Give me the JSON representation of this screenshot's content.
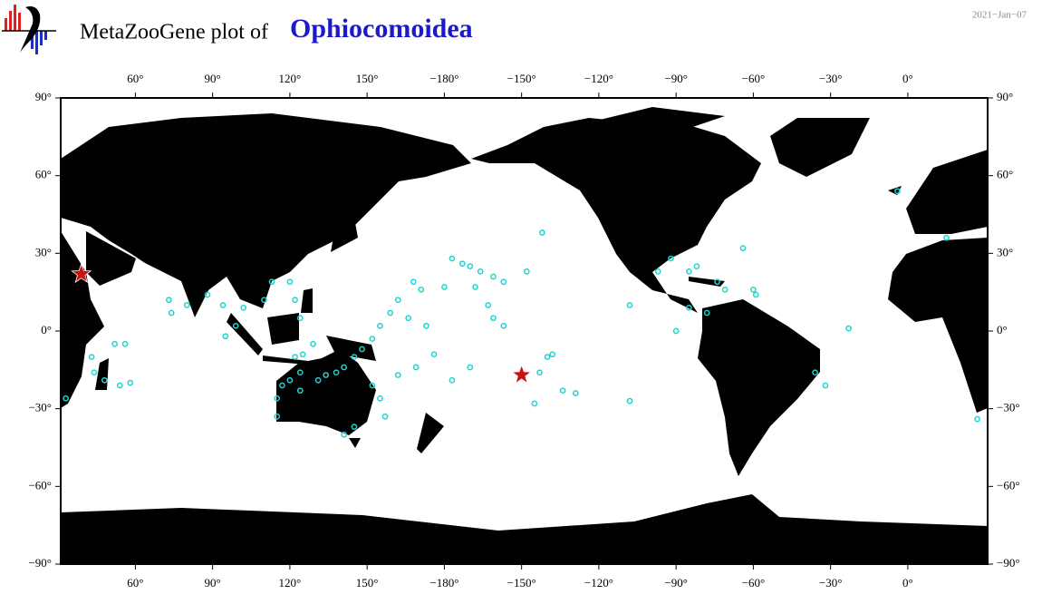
{
  "chart_data": {
    "type": "map",
    "title": "MetaZooGene plot of",
    "taxon": "Ophiocomoidea",
    "date": "2021−Jan−07",
    "xlim": [
      31,
      391
    ],
    "ylim": [
      -90,
      90
    ],
    "xticks": [
      {
        "value": 60,
        "label": "60°"
      },
      {
        "value": 90,
        "label": "90°"
      },
      {
        "value": 120,
        "label": "120°"
      },
      {
        "value": 150,
        "label": "150°"
      },
      {
        "value": 180,
        "label": "−180°"
      },
      {
        "value": 210,
        "label": "−150°"
      },
      {
        "value": 240,
        "label": "−120°"
      },
      {
        "value": 270,
        "label": "−90°"
      },
      {
        "value": 300,
        "label": "−60°"
      },
      {
        "value": 330,
        "label": "−30°"
      },
      {
        "value": 360,
        "label": "0°"
      }
    ],
    "yticks": [
      {
        "value": 90,
        "label": "90°"
      },
      {
        "value": 60,
        "label": "60°"
      },
      {
        "value": 30,
        "label": "30°"
      },
      {
        "value": 0,
        "label": "0°"
      },
      {
        "value": -30,
        "label": "−30°"
      },
      {
        "value": -60,
        "label": "−60°"
      },
      {
        "value": -90,
        "label": "−90°"
      }
    ],
    "occurrences": {
      "color": "#1fd3d3",
      "lon": [
        218,
        212,
        183,
        187,
        190,
        194,
        199,
        203,
        192,
        180,
        171,
        168,
        162,
        159,
        155,
        152,
        148,
        145,
        141,
        138,
        131,
        124,
        120,
        117,
        115,
        115,
        122,
        125,
        129,
        124,
        122,
        120,
        113,
        110,
        102,
        99,
        95,
        94,
        88,
        80,
        74,
        73,
        52,
        56,
        44,
        48,
        54,
        58,
        33,
        43,
        162,
        169,
        176,
        183,
        190,
        199,
        203,
        197,
        166,
        173,
        220,
        222,
        217,
        215,
        226,
        231,
        252,
        252,
        270,
        263,
        268,
        275,
        278,
        286,
        289,
        300,
        301,
        275,
        282,
        324,
        328,
        337,
        296,
        387,
        375,
        356,
        152,
        155,
        157,
        141,
        145,
        124,
        134
      ],
      "lat": [
        38,
        23,
        28,
        26,
        25,
        23,
        21,
        19,
        17,
        17,
        16,
        19,
        12,
        7,
        2,
        -3,
        -7,
        -10,
        -14,
        -16,
        -19,
        -16,
        -19,
        -21,
        -26,
        -33,
        -10,
        -9,
        -5,
        5,
        12,
        19,
        19,
        12,
        9,
        2,
        -2,
        10,
        14,
        10,
        7,
        12,
        -5,
        -5,
        -16,
        -19,
        -21,
        -20,
        -26,
        -10,
        -17,
        -14,
        -9,
        -19,
        -14,
        5,
        2,
        10,
        5,
        2,
        -10,
        -9,
        -16,
        -28,
        -23,
        -24,
        10,
        -27,
        0,
        23,
        28,
        23,
        25,
        19,
        16,
        16,
        14,
        9,
        7,
        -16,
        -21,
        1,
        32,
        -34,
        36,
        54,
        -21,
        -26,
        -33,
        -40,
        -37,
        -23,
        -17
      ]
    },
    "stars": {
      "color": "#cc1111",
      "lon": [
        39,
        210
      ],
      "lat": [
        22,
        -17
      ]
    }
  }
}
